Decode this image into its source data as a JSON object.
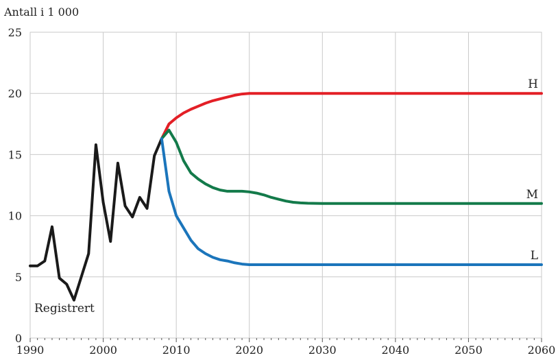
{
  "chart_data": {
    "type": "line",
    "title": "",
    "ylabel": "Antall i 1 000",
    "xlabel": "",
    "xlim": [
      1990,
      2060
    ],
    "ylim": [
      0,
      25
    ],
    "x_ticks": [
      1990,
      2000,
      2010,
      2020,
      2030,
      2040,
      2050,
      2060
    ],
    "y_ticks": [
      0,
      5,
      10,
      15,
      20,
      25
    ],
    "grid": true,
    "series": [
      {
        "name": "Registrert",
        "color": "#1a1a1a",
        "x": [
          1990,
          1991,
          1992,
          1993,
          1994,
          1995,
          1996,
          1997,
          1998,
          1999,
          2000,
          2001,
          2002,
          2003,
          2004,
          2005,
          2006,
          2007,
          2008
        ],
        "y": [
          5.9,
          5.9,
          6.3,
          9.1,
          4.9,
          4.4,
          3.1,
          5.0,
          6.9,
          15.8,
          11.1,
          7.9,
          14.3,
          10.8,
          9.9,
          11.5,
          10.6,
          14.9,
          16.3
        ]
      },
      {
        "name": "H",
        "color": "#e31f26",
        "x": [
          2008,
          2009,
          2010,
          2011,
          2012,
          2013,
          2014,
          2015,
          2016,
          2017,
          2018,
          2019,
          2020,
          2022,
          2025,
          2030,
          2040,
          2050,
          2060
        ],
        "y": [
          16.3,
          17.5,
          18.0,
          18.4,
          18.7,
          18.95,
          19.2,
          19.4,
          19.55,
          19.7,
          19.85,
          19.95,
          20.0,
          20.0,
          20.0,
          20.0,
          20.0,
          20.0,
          20.0
        ]
      },
      {
        "name": "M",
        "color": "#137a4a",
        "x": [
          2008,
          2009,
          2010,
          2011,
          2012,
          2013,
          2014,
          2015,
          2016,
          2017,
          2018,
          2019,
          2020,
          2021,
          2022,
          2023,
          2024,
          2025,
          2026,
          2027,
          2028,
          2030,
          2040,
          2050,
          2060
        ],
        "y": [
          16.3,
          17.0,
          16.0,
          14.5,
          13.5,
          13.0,
          12.6,
          12.3,
          12.1,
          12.0,
          12.0,
          12.0,
          11.95,
          11.85,
          11.7,
          11.5,
          11.35,
          11.2,
          11.1,
          11.05,
          11.02,
          11.0,
          11.0,
          11.0,
          11.0
        ]
      },
      {
        "name": "L",
        "color": "#1b75bb",
        "x": [
          2008,
          2009,
          2010,
          2011,
          2012,
          2013,
          2014,
          2015,
          2016,
          2017,
          2018,
          2019,
          2020,
          2025,
          2030,
          2040,
          2050,
          2060
        ],
        "y": [
          16.3,
          12.0,
          10.0,
          9.0,
          8.0,
          7.3,
          6.9,
          6.6,
          6.4,
          6.3,
          6.15,
          6.05,
          6.0,
          6.0,
          6.0,
          6.0,
          6.0,
          6.0
        ]
      }
    ],
    "annotations": [
      {
        "text": "Registrert",
        "series": "Registrert"
      },
      {
        "text": "H",
        "series": "H"
      },
      {
        "text": "M",
        "series": "M"
      },
      {
        "text": "L",
        "series": "L"
      }
    ]
  }
}
